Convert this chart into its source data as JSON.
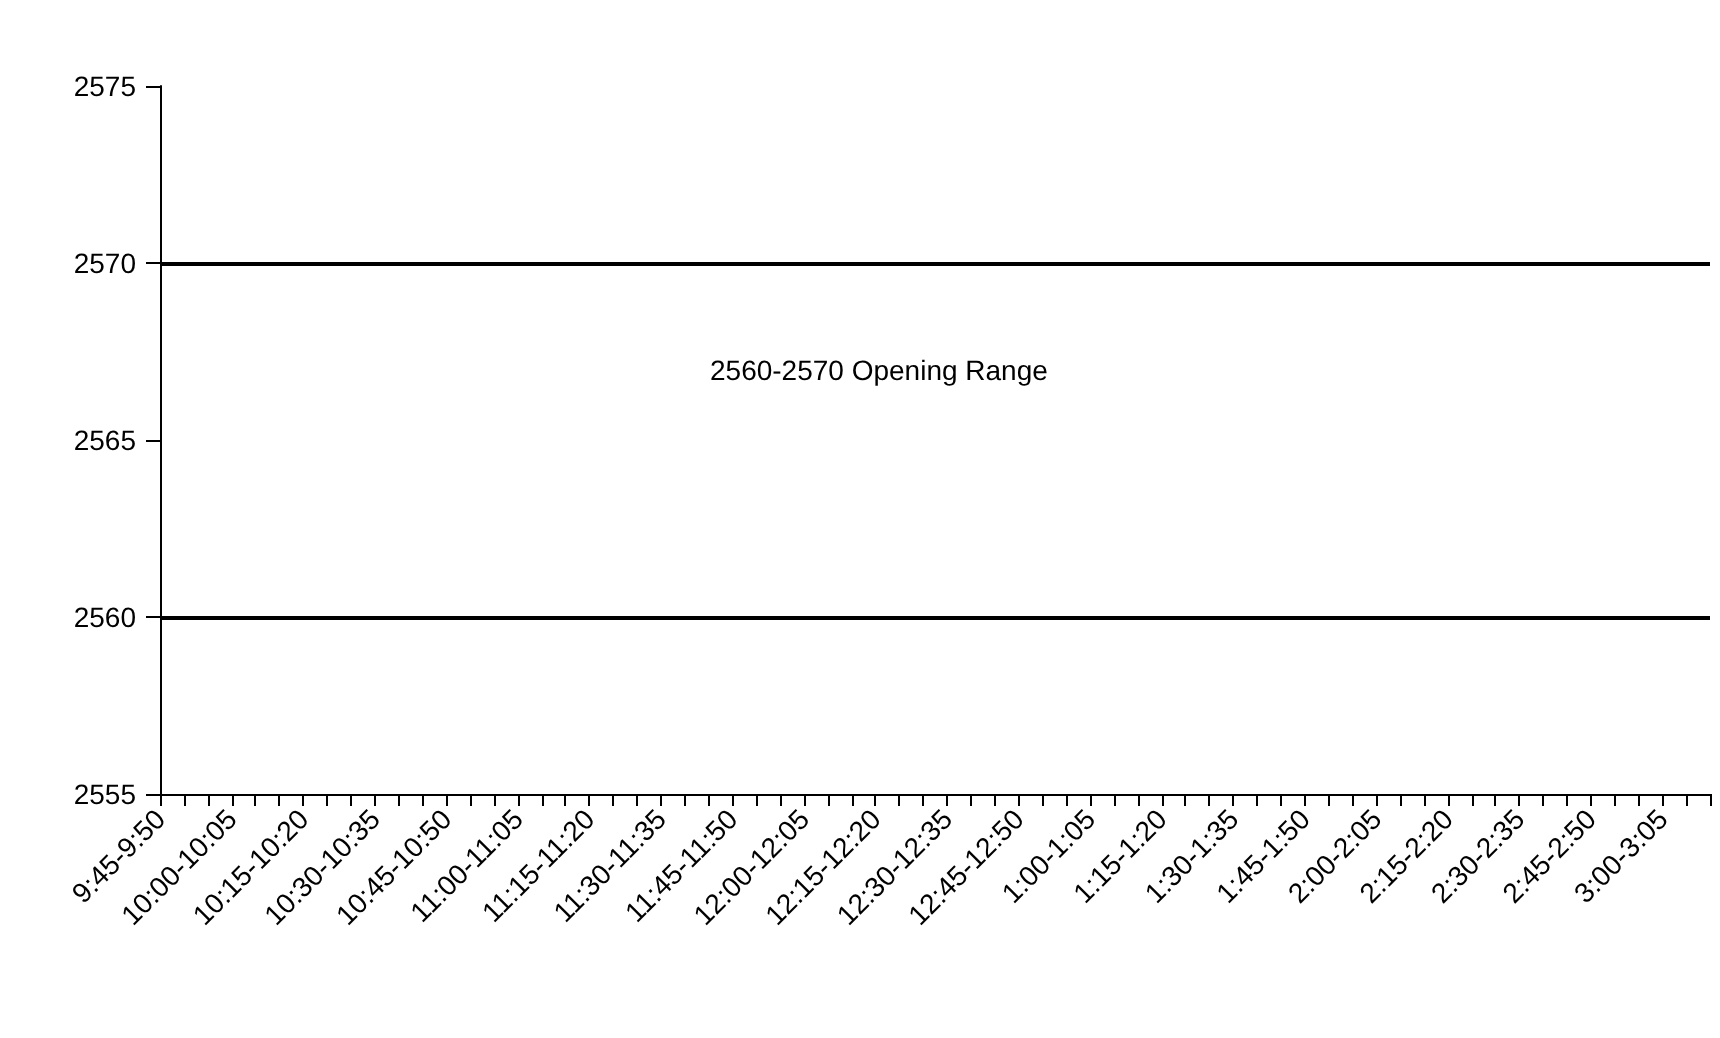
{
  "chart_data": {
    "type": "line",
    "categories": [
      "9:45-9:50",
      null,
      null,
      "10:00-10:05",
      null,
      null,
      "10:15-10:20",
      null,
      null,
      "10:30-10:35",
      null,
      null,
      "10:45-10:50",
      null,
      null,
      "11:00-11:05",
      null,
      null,
      "11:15-11:20",
      null,
      null,
      "11:30-11:35",
      null,
      null,
      "11:45-11:50",
      null,
      null,
      "12:00-12:05",
      null,
      null,
      "12:15-12:20",
      null,
      null,
      "12:30-12:35",
      null,
      null,
      "12:45-12:50",
      null,
      null,
      "1:00-1:05",
      null,
      null,
      "1:15-1:20",
      null,
      null,
      "1:30-1:35",
      null,
      null,
      "1:45-1:50",
      null,
      null,
      "2:00-2:05",
      null,
      null,
      "2:15-2:20",
      null,
      null,
      "2:30-2:35",
      null,
      null,
      "2:45-2:50",
      null,
      null,
      "3:00-3:05",
      null,
      null
    ],
    "values": [
      null,
      null,
      null,
      null,
      null,
      null,
      null,
      null,
      null,
      null,
      null,
      null,
      null,
      null,
      null,
      null,
      null,
      null,
      null,
      null,
      null,
      null,
      null,
      null,
      null,
      null,
      null,
      null,
      null,
      null,
      null,
      null,
      null,
      null,
      null,
      null,
      null,
      null,
      null,
      null,
      null,
      null,
      null,
      null,
      null,
      null,
      null,
      null,
      null,
      null,
      null,
      null,
      null,
      null,
      null,
      null,
      null,
      null,
      null,
      null,
      null,
      null,
      null,
      null,
      null,
      null
    ],
    "ylim": [
      2555,
      2575
    ],
    "yticks": [
      2555,
      2560,
      2565,
      2570,
      2575
    ],
    "ref_lines": [
      {
        "axis": "y",
        "value": 2570,
        "color": "#000000"
      },
      {
        "axis": "y",
        "value": 2560,
        "color": "#000000"
      }
    ],
    "annotations": [
      "2560-2570 Opening Range"
    ]
  }
}
